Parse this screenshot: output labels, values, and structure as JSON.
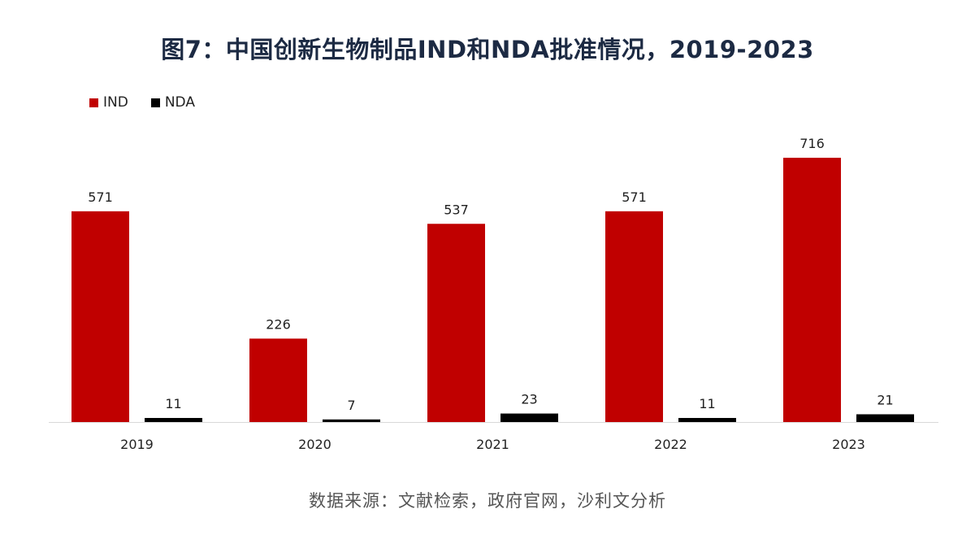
{
  "title": "图7：中国创新生物制品IND和NDA批准情况，2019-2023",
  "source": "数据来源：文献检索，政府官网，沙利文分析",
  "colors": {
    "ind": "#c00000",
    "nda": "#000000",
    "axis": "#d9d9d9"
  },
  "chart_data": {
    "type": "bar",
    "categories": [
      "2019",
      "2020",
      "2021",
      "2022",
      "2023"
    ],
    "series": [
      {
        "name": "IND",
        "values": [
          571,
          226,
          537,
          571,
          716
        ]
      },
      {
        "name": "NDA",
        "values": [
          11,
          7,
          23,
          11,
          21
        ]
      }
    ],
    "title": "图7：中国创新生物制品IND和NDA批准情况，2019-2023",
    "xlabel": "",
    "ylabel": "",
    "ylim": [
      0,
      716
    ],
    "grid": false,
    "legend_position": "top-left",
    "data_labels": true
  }
}
